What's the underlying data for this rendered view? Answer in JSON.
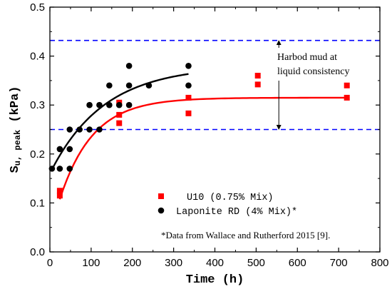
{
  "chart_data": {
    "type": "scatter",
    "title": "",
    "xlabel": "Time (h)",
    "ylabel": {
      "base": "S",
      "sub": "u, peak",
      "unit": " (kPa)"
    },
    "xlim": [
      0,
      800
    ],
    "ylim": [
      0,
      0.5
    ],
    "x_ticks": [
      0,
      100,
      200,
      300,
      400,
      500,
      600,
      700,
      800
    ],
    "y_ticks": [
      0.0,
      0.1,
      0.2,
      0.3,
      0.4,
      0.5
    ],
    "grid": false,
    "legend_position": "bottom-center",
    "colors": {
      "u10": "#ff0000",
      "laponite": "#000000",
      "dashed": "#0000ff"
    },
    "series": [
      {
        "name": "U10 (0.75% Mix)",
        "marker": "square",
        "color": "#ff0000",
        "points": [
          [
            24,
            0.125
          ],
          [
            24,
            0.115
          ],
          [
            168,
            0.28
          ],
          [
            168,
            0.263
          ],
          [
            168,
            0.305
          ],
          [
            336,
            0.315
          ],
          [
            336,
            0.283
          ],
          [
            504,
            0.36
          ],
          [
            504,
            0.342
          ],
          [
            720,
            0.34
          ],
          [
            720,
            0.315
          ]
        ],
        "fit": {
          "color": "#ff0000",
          "x_range": [
            24,
            720
          ],
          "model": "y = a - b*exp(-x/t)",
          "a": 0.315,
          "b": 0.28,
          "t": 80
        }
      },
      {
        "name": "Laponite RD (4% Mix)*",
        "marker": "circle",
        "color": "#000000",
        "points": [
          [
            5,
            0.17
          ],
          [
            24,
            0.21
          ],
          [
            24,
            0.17
          ],
          [
            48,
            0.25
          ],
          [
            48,
            0.21
          ],
          [
            48,
            0.17
          ],
          [
            72,
            0.25
          ],
          [
            96,
            0.3
          ],
          [
            96,
            0.25
          ],
          [
            120,
            0.3
          ],
          [
            120,
            0.25
          ],
          [
            144,
            0.34
          ],
          [
            144,
            0.3
          ],
          [
            168,
            0.3
          ],
          [
            192,
            0.38
          ],
          [
            192,
            0.34
          ],
          [
            192,
            0.3
          ],
          [
            240,
            0.34
          ],
          [
            336,
            0.38
          ],
          [
            336,
            0.34
          ]
        ],
        "fit": {
          "color": "#000000",
          "x_range": [
            5,
            336
          ],
          "model": "y = a - b*exp(-x/t)",
          "a": 0.38,
          "b": 0.22,
          "t": 130
        }
      }
    ],
    "reference_lines": [
      {
        "y": 0.432,
        "style": "dashed",
        "color": "#0000ff"
      },
      {
        "y": 0.25,
        "style": "dashed",
        "color": "#0000ff"
      }
    ],
    "range_arrow": {
      "x": 555,
      "y_from": 0.25,
      "y_to": 0.432
    },
    "annotation": [
      "Harbod mud at",
      "liquid consistency"
    ],
    "footnote": "*Data from Wallace and Rutherford 2015 [9]."
  }
}
